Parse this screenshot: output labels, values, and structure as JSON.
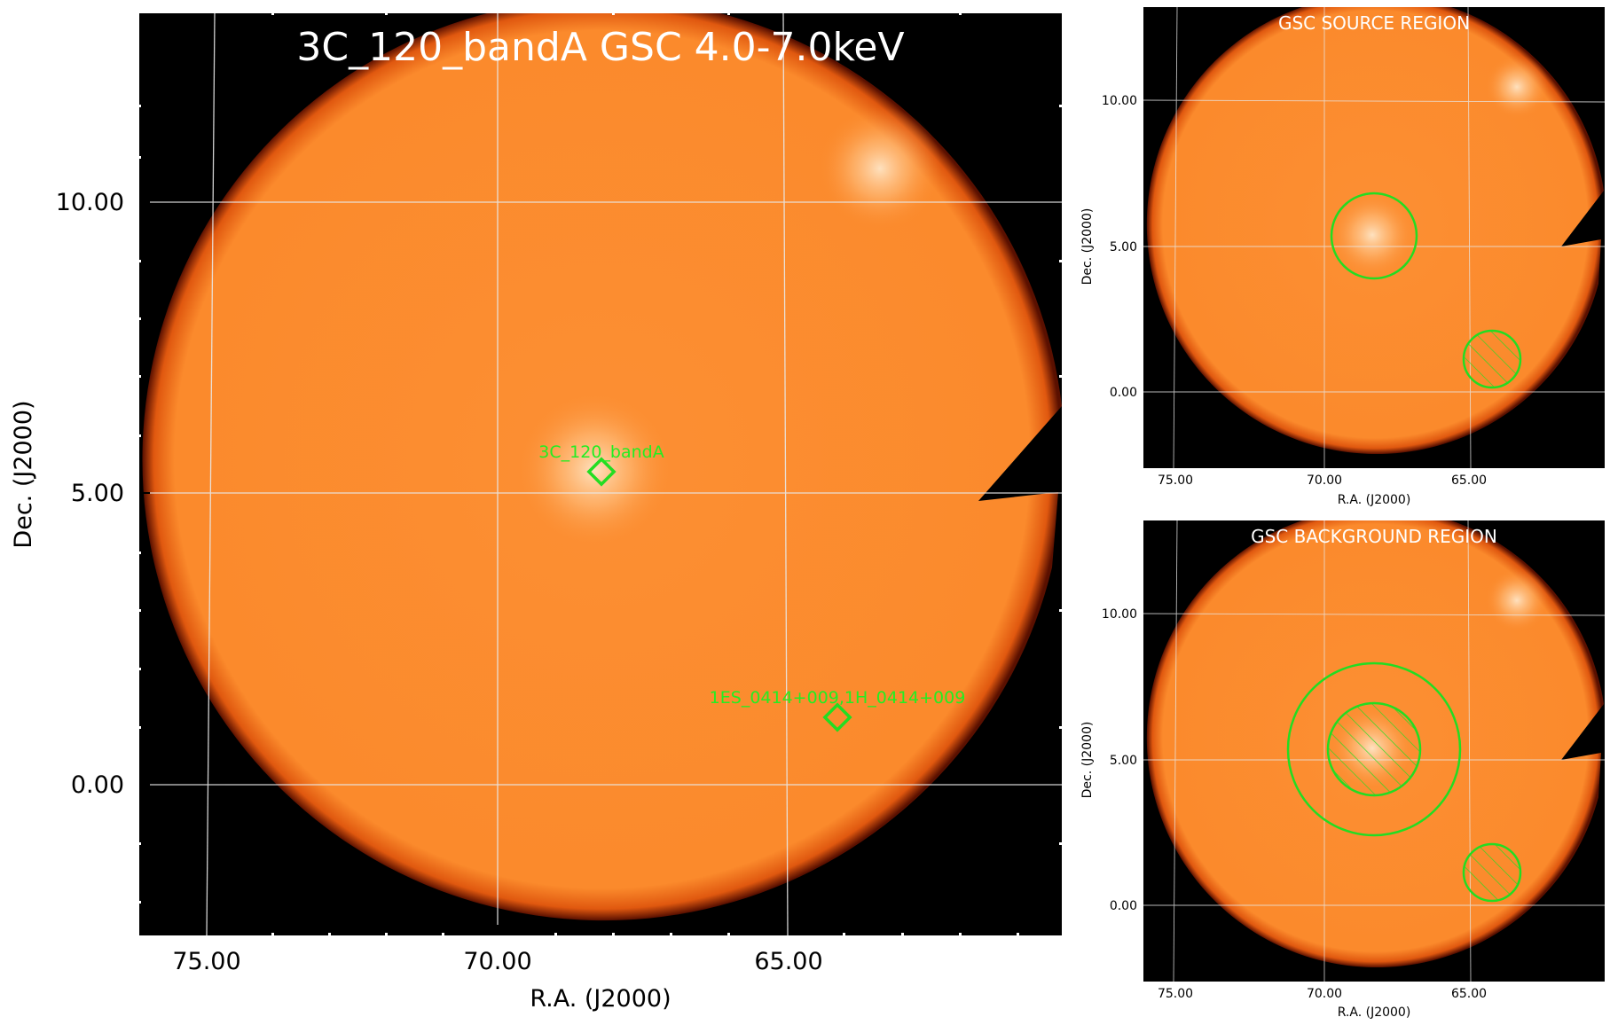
{
  "main": {
    "title": "3C_120_bandA GSC 4.0-7.0keV",
    "xlabel": "R.A. (J2000)",
    "ylabel": "Dec. (J2000)",
    "xticks": [
      "75.00",
      "70.00",
      "65.00"
    ],
    "yticks": [
      "10.00",
      "5.00",
      "0.00"
    ],
    "sources": [
      {
        "label": "3C_120_bandA",
        "ra": 68.3,
        "dec": 5.35
      },
      {
        "label": "1ES_0414+009,1H_0414+009",
        "ra": 64.2,
        "dec": 1.15
      }
    ]
  },
  "source_panel": {
    "title": "GSC SOURCE REGION",
    "xlabel": "R.A. (J2000)",
    "ylabel": "Dec. (J2000)",
    "xticks": [
      "75.00",
      "70.00",
      "65.00"
    ],
    "yticks": [
      "10.00",
      "5.00",
      "0.00"
    ]
  },
  "background_panel": {
    "title": "GSC BACKGROUND REGION",
    "xlabel": "R.A. (J2000)",
    "ylabel": "Dec. (J2000)",
    "xticks": [
      "75.00",
      "70.00",
      "65.00"
    ],
    "yticks": [
      "10.00",
      "5.00",
      "0.00"
    ]
  },
  "colors": {
    "disk": "#fb8a2c",
    "disk_edge": "#7a1800",
    "region": "#22dd22",
    "grid": "#e8e8e8",
    "background": "#000000"
  }
}
